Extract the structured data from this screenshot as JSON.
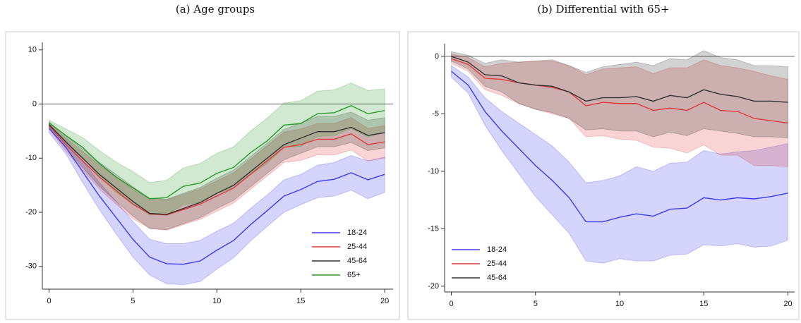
{
  "chart_data": [
    {
      "type": "line",
      "title": "(a) Age groups",
      "x": [
        0,
        1,
        2,
        3,
        4,
        5,
        6,
        7,
        8,
        9,
        10,
        11,
        12,
        13,
        14,
        15,
        16,
        17,
        18,
        19,
        20
      ],
      "xlim": [
        -0.4,
        20.5
      ],
      "ylim": [
        -34.2,
        11.4
      ],
      "xticks": [
        0,
        5,
        10,
        15,
        20
      ],
      "yticks": [
        10,
        0,
        -10,
        -20,
        -30
      ],
      "hline": 0,
      "legend": "lower right",
      "series": [
        {
          "name": "18-24",
          "color": "#3c3cf0",
          "values": [
            -4.5,
            -8,
            -12.5,
            -17,
            -21,
            -25,
            -28.3,
            -29.5,
            -29.6,
            -29,
            -27,
            -25.2,
            -22.3,
            -19.7,
            -17,
            -15.8,
            -14.3,
            -13.9,
            -12.7,
            -14,
            -13
          ],
          "upper": [
            -3.8,
            -6.8,
            -10.5,
            -14.5,
            -18,
            -21.7,
            -25,
            -25.8,
            -25.8,
            -25.2,
            -23.5,
            -22,
            -19.3,
            -16.8,
            -14,
            -13,
            -11.3,
            -10.8,
            -9.5,
            -10.5,
            -9.8
          ],
          "lower": [
            -5.3,
            -9.2,
            -14.5,
            -19.5,
            -24,
            -28.3,
            -31.6,
            -33.2,
            -33.4,
            -32.8,
            -30.5,
            -28.4,
            -25.3,
            -22.6,
            -20,
            -18.6,
            -17.3,
            -17,
            -15.9,
            -17.5,
            -16.3
          ]
        },
        {
          "name": "25-44",
          "color": "#e03a3a",
          "values": [
            -4,
            -7.5,
            -10.5,
            -13.5,
            -16,
            -18.5,
            -20.3,
            -20.5,
            -19.5,
            -18.5,
            -17,
            -15.5,
            -13,
            -10.5,
            -8,
            -7.5,
            -6.5,
            -6.5,
            -5.5,
            -7.5,
            -7
          ],
          "upper": [
            -3.4,
            -6.3,
            -8.8,
            -11.3,
            -13.5,
            -15.8,
            -17.6,
            -17.7,
            -16.7,
            -15.7,
            -14.2,
            -12.7,
            -10.2,
            -7.7,
            -5.2,
            -4.6,
            -3.6,
            -3.6,
            -2.5,
            -4.5,
            -4
          ],
          "lower": [
            -4.6,
            -8.7,
            -12.2,
            -15.7,
            -18.5,
            -21.2,
            -23,
            -23.3,
            -22.3,
            -21.3,
            -19.8,
            -18.3,
            -15.8,
            -13.3,
            -10.8,
            -10.4,
            -9.4,
            -9.4,
            -8.5,
            -10.5,
            -10
          ]
        },
        {
          "name": "45-64",
          "color": "#333333",
          "values": [
            -3.8,
            -7,
            -10,
            -13,
            -15.5,
            -18,
            -20.2,
            -20.4,
            -19.3,
            -18.2,
            -16.5,
            -15,
            -12.5,
            -10,
            -7.5,
            -6.3,
            -5.1,
            -5.1,
            -4.3,
            -5.8,
            -5.3
          ],
          "upper": [
            -3.3,
            -5.9,
            -8.3,
            -10.8,
            -13,
            -15.3,
            -17.4,
            -17.6,
            -16.5,
            -15.4,
            -13.7,
            -12.2,
            -9.7,
            -7.2,
            -4.7,
            -3.5,
            -2.3,
            -2.3,
            -1.5,
            -3,
            -2.5
          ],
          "lower": [
            -4.3,
            -8.1,
            -11.7,
            -15.2,
            -18,
            -20.7,
            -23,
            -23.2,
            -22.1,
            -21,
            -19.3,
            -17.8,
            -15.3,
            -12.8,
            -10.3,
            -9.1,
            -7.9,
            -7.9,
            -7.1,
            -8.6,
            -8.1
          ]
        },
        {
          "name": "65+",
          "color": "#2a9a2a",
          "values": [
            -3.5,
            -5.8,
            -8,
            -11,
            -13.5,
            -15.5,
            -17.5,
            -17.3,
            -15.2,
            -14.6,
            -12.8,
            -11.7,
            -9,
            -6.8,
            -3.9,
            -3.6,
            -1.8,
            -1.6,
            -0.3,
            -1.8,
            -1.2
          ],
          "upper": [
            -3,
            -4.6,
            -6.2,
            -8.6,
            -10.7,
            -12.5,
            -14.5,
            -14.1,
            -11.8,
            -11,
            -9.1,
            -7.9,
            -5,
            -2.6,
            0.2,
            0.6,
            2.4,
            2.6,
            3.9,
            2.5,
            2.8
          ],
          "lower": [
            -4,
            -7,
            -9.8,
            -13.4,
            -16.3,
            -18.5,
            -20.5,
            -20.5,
            -18.6,
            -18.2,
            -16.5,
            -15.5,
            -13,
            -11,
            -8,
            -7.8,
            -6,
            -5.8,
            -4.5,
            -6.1,
            -5.2
          ]
        }
      ]
    },
    {
      "type": "line",
      "title": "(b) Differential with 65+",
      "x": [
        0,
        1,
        2,
        3,
        4,
        5,
        6,
        7,
        8,
        9,
        10,
        11,
        12,
        13,
        14,
        15,
        16,
        17,
        18,
        19,
        20
      ],
      "xlim": [
        -0.4,
        20.4
      ],
      "ylim": [
        -20.5,
        1.1
      ],
      "xticks": [
        0,
        5,
        10,
        15,
        20
      ],
      "yticks": [
        0,
        -5,
        -10,
        -15,
        -20
      ],
      "hline": 0,
      "legend": "lower left",
      "series": [
        {
          "name": "18-24",
          "color": "#3c3cf0",
          "values": [
            -1.3,
            -2.5,
            -4.8,
            -6.5,
            -8,
            -9.5,
            -10.8,
            -12.3,
            -14.4,
            -14.4,
            -14,
            -13.7,
            -13.9,
            -13.3,
            -13.2,
            -12.3,
            -12.5,
            -12.3,
            -12.4,
            -12.2,
            -11.9
          ],
          "upper": [
            -0.8,
            -1.8,
            -3.6,
            -4.8,
            -5.8,
            -6.8,
            -7.8,
            -9.2,
            -11,
            -10.8,
            -10.4,
            -9.6,
            -10,
            -9.3,
            -9.2,
            -8.2,
            -8.5,
            -8.3,
            -8.2,
            -7.9,
            -7.6
          ],
          "lower": [
            -1.8,
            -3.2,
            -6,
            -8.2,
            -10.2,
            -12.2,
            -13.8,
            -15.4,
            -17.8,
            -18,
            -17.6,
            -17.8,
            -17.8,
            -17.3,
            -17.2,
            -16.4,
            -16.5,
            -16.3,
            -16.6,
            -16.5,
            -16
          ]
        },
        {
          "name": "25-44",
          "color": "#e03a3a",
          "values": [
            -0.2,
            -0.7,
            -1.9,
            -2,
            -2.3,
            -2.5,
            -2.7,
            -3.1,
            -4.3,
            -4,
            -4.1,
            -4.1,
            -4.7,
            -4.5,
            -4.7,
            -4,
            -4.7,
            -4.8,
            -5.4,
            -5.6,
            -5.8
          ],
          "upper": [
            0.2,
            -0.1,
            -0.9,
            -0.6,
            -0.5,
            -0.4,
            -0.4,
            -0.8,
            -1.6,
            -1.1,
            -1,
            -0.9,
            -1.5,
            -1,
            -1,
            -0.3,
            -0.8,
            -1,
            -1.3,
            -1.7,
            -2
          ],
          "lower": [
            -0.6,
            -1.3,
            -2.9,
            -3.4,
            -4.1,
            -4.6,
            -5,
            -5.4,
            -7,
            -6.9,
            -7.2,
            -7.3,
            -7.9,
            -8,
            -8.4,
            -7.7,
            -8.6,
            -8.6,
            -9.5,
            -9.5,
            -9.6
          ]
        },
        {
          "name": "45-64",
          "color": "#333333",
          "values": [
            0,
            -0.5,
            -1.6,
            -1.7,
            -2.3,
            -2.5,
            -2.6,
            -3.1,
            -3.9,
            -3.6,
            -3.6,
            -3.5,
            -3.9,
            -3.4,
            -3.6,
            -2.9,
            -3.3,
            -3.5,
            -3.9,
            -3.9,
            -4
          ],
          "upper": [
            0.4,
            0.1,
            -0.6,
            -0.3,
            -0.5,
            -0.4,
            -0.3,
            -0.8,
            -1.4,
            -0.9,
            -0.7,
            -0.5,
            -0.8,
            -0.2,
            -0.3,
            0.5,
            -0.1,
            -0.3,
            -0.8,
            -0.8,
            -0.9
          ],
          "lower": [
            -0.4,
            -1.1,
            -2.6,
            -3.1,
            -4.1,
            -4.6,
            -4.9,
            -5.4,
            -6.4,
            -6.3,
            -6.5,
            -6.5,
            -7,
            -6.6,
            -6.9,
            -6.3,
            -6.5,
            -6.7,
            -7,
            -7,
            -7.1
          ]
        }
      ]
    }
  ]
}
